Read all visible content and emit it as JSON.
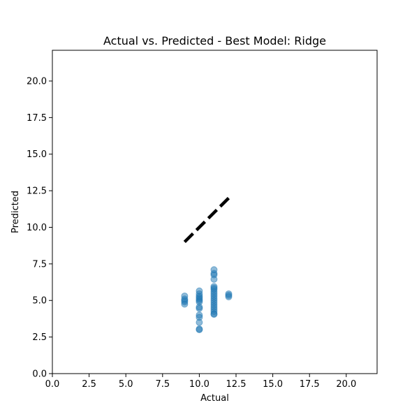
{
  "chart_data": {
    "type": "scatter",
    "title": "Actual vs. Predicted - Best Model: Ridge",
    "xlabel": "Actual",
    "ylabel": "Predicted",
    "xlim": [
      0,
      22.1
    ],
    "ylim": [
      0,
      22.1
    ],
    "xticks": [
      0.0,
      2.5,
      5.0,
      7.5,
      10.0,
      12.5,
      15.0,
      17.5,
      20.0
    ],
    "yticks": [
      0.0,
      2.5,
      5.0,
      7.5,
      10.0,
      12.5,
      15.0,
      17.5,
      20.0
    ],
    "xtick_labels": [
      "0.0",
      "2.5",
      "5.0",
      "7.5",
      "10.0",
      "12.5",
      "15.0",
      "17.5",
      "20.0"
    ],
    "ytick_labels": [
      "0.0",
      "2.5",
      "5.0",
      "7.5",
      "10.0",
      "12.5",
      "15.0",
      "17.5",
      "20.0"
    ],
    "grid": false,
    "point_color": "#1f77b4",
    "line_color": "#000000",
    "reference_line": {
      "style": "dashed",
      "x": [
        9,
        12
      ],
      "y": [
        9,
        12
      ]
    },
    "points": [
      {
        "x": 9,
        "y": 5.3
      },
      {
        "x": 9,
        "y": 5.1
      },
      {
        "x": 9,
        "y": 5.0
      },
      {
        "x": 9,
        "y": 4.9
      },
      {
        "x": 9,
        "y": 4.75
      },
      {
        "x": 10,
        "y": 5.65
      },
      {
        "x": 10,
        "y": 5.45
      },
      {
        "x": 10,
        "y": 5.3
      },
      {
        "x": 10,
        "y": 5.2
      },
      {
        "x": 10,
        "y": 5.1
      },
      {
        "x": 10,
        "y": 5.0
      },
      {
        "x": 10,
        "y": 4.9
      },
      {
        "x": 10,
        "y": 4.55
      },
      {
        "x": 10,
        "y": 4.45
      },
      {
        "x": 10,
        "y": 4.0
      },
      {
        "x": 10,
        "y": 3.85
      },
      {
        "x": 10,
        "y": 3.5
      },
      {
        "x": 10,
        "y": 3.05
      },
      {
        "x": 10,
        "y": 3.0
      },
      {
        "x": 11,
        "y": 7.1
      },
      {
        "x": 11,
        "y": 6.85
      },
      {
        "x": 11,
        "y": 6.75
      },
      {
        "x": 11,
        "y": 6.45
      },
      {
        "x": 11,
        "y": 5.95
      },
      {
        "x": 11,
        "y": 5.85
      },
      {
        "x": 11,
        "y": 5.75
      },
      {
        "x": 11,
        "y": 5.6
      },
      {
        "x": 11,
        "y": 5.45
      },
      {
        "x": 11,
        "y": 5.3
      },
      {
        "x": 11,
        "y": 5.15
      },
      {
        "x": 11,
        "y": 5.0
      },
      {
        "x": 11,
        "y": 4.85
      },
      {
        "x": 11,
        "y": 4.7
      },
      {
        "x": 11,
        "y": 4.55
      },
      {
        "x": 11,
        "y": 4.4
      },
      {
        "x": 11,
        "y": 4.25
      },
      {
        "x": 11,
        "y": 4.1
      },
      {
        "x": 11,
        "y": 4.05
      },
      {
        "x": 12,
        "y": 5.45
      },
      {
        "x": 12,
        "y": 5.35
      },
      {
        "x": 12,
        "y": 5.25
      }
    ]
  }
}
